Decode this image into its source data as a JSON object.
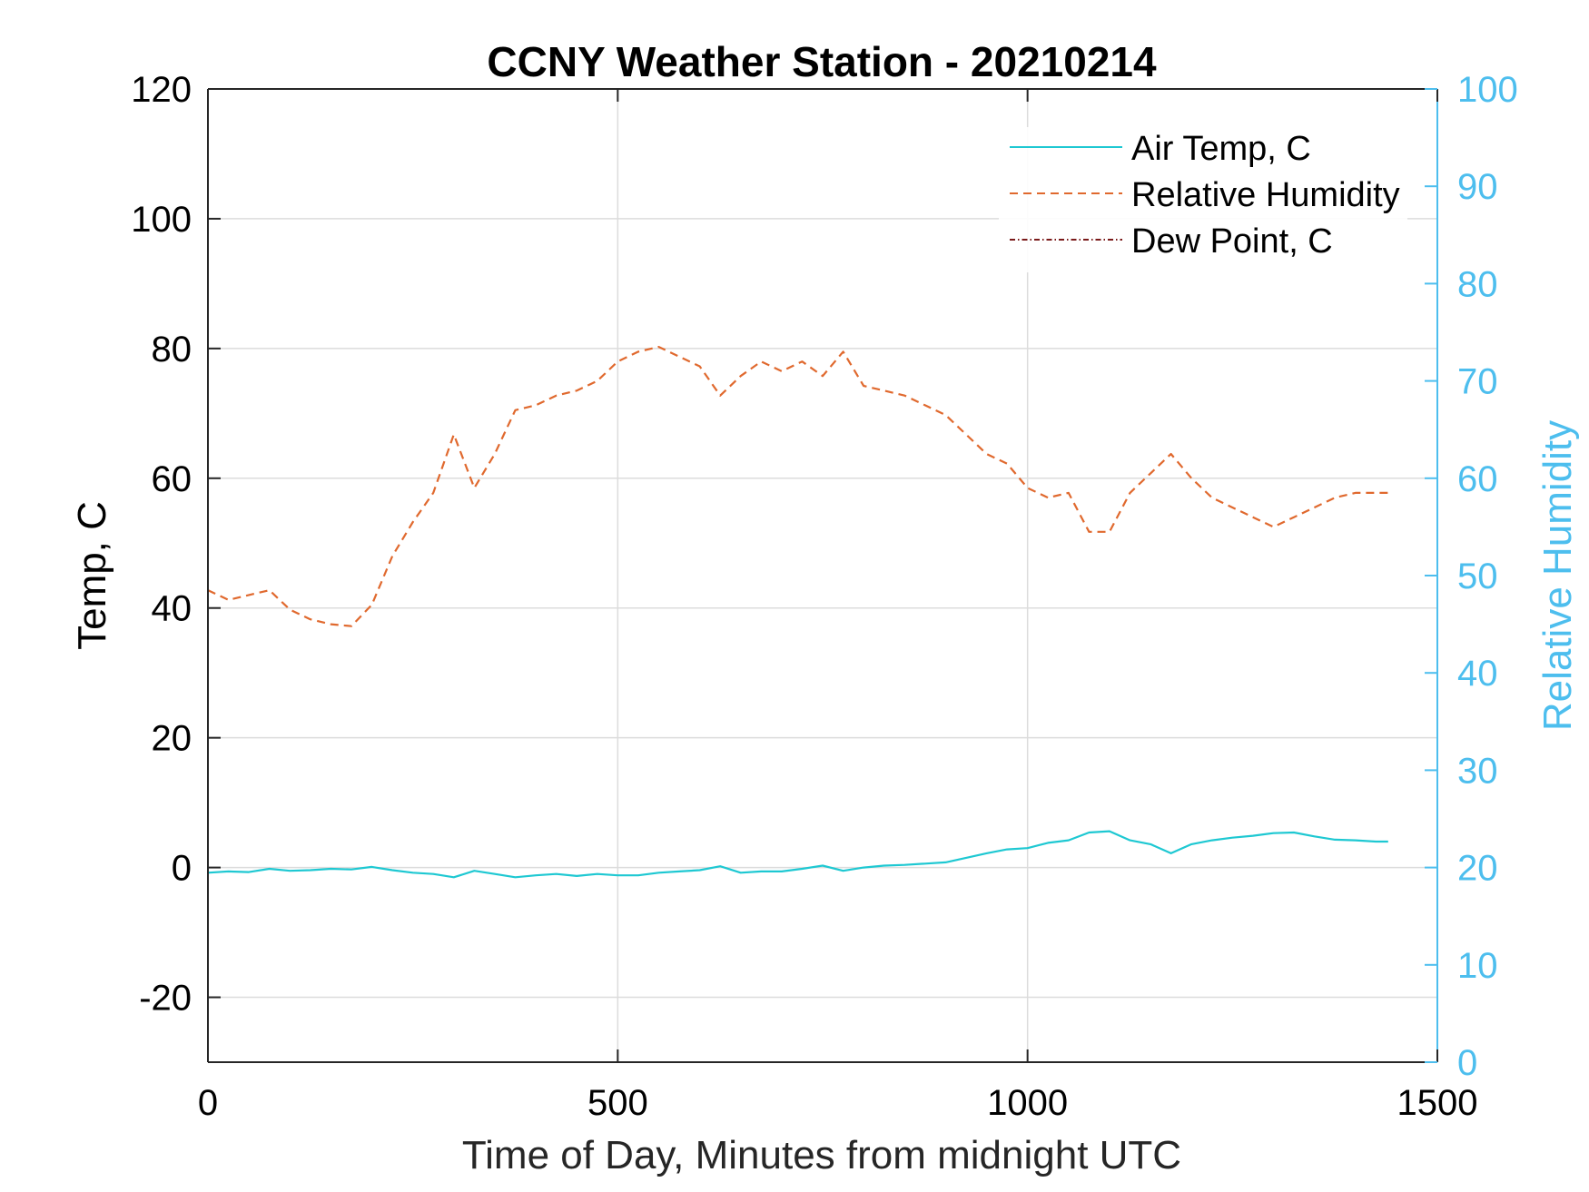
{
  "chart_data": {
    "type": "line",
    "title": "CCNY Weather Station - 20210214",
    "xlabel": "Time of Day, Minutes from midnight UTC",
    "ylabel_left": "Temp, C",
    "ylabel_right": "Relative Humidity",
    "xlim": [
      0,
      1500
    ],
    "ylim_left": [
      -30,
      120
    ],
    "ylim_right": [
      0,
      100
    ],
    "x_ticks": [
      "0",
      "500",
      "1000",
      "1500"
    ],
    "y_ticks_left": [
      "-20",
      "0",
      "20",
      "40",
      "60",
      "80",
      "100",
      "120"
    ],
    "y_ticks_right": [
      "0",
      "10",
      "20",
      "30",
      "40",
      "50",
      "60",
      "70",
      "80",
      "90",
      "100"
    ],
    "grid": true,
    "legend_position": "top-right",
    "colors": {
      "air_temp": "#1ec8d2",
      "relative_humidity": "#e0692e",
      "dew_point": "#7a1a1a",
      "right_axis": "#4dbeee"
    },
    "series": [
      {
        "name": "Air Temp, C",
        "axis": "left",
        "style": "solid",
        "x": [
          0,
          25,
          50,
          75,
          100,
          125,
          150,
          175,
          200,
          225,
          250,
          275,
          300,
          325,
          350,
          375,
          400,
          425,
          450,
          475,
          500,
          525,
          550,
          575,
          600,
          625,
          650,
          675,
          700,
          725,
          750,
          775,
          800,
          825,
          850,
          875,
          900,
          925,
          950,
          975,
          1000,
          1025,
          1050,
          1075,
          1100,
          1125,
          1150,
          1175,
          1200,
          1225,
          1250,
          1275,
          1300,
          1325,
          1350,
          1375,
          1400,
          1425,
          1440
        ],
        "values": [
          -0.8,
          -0.6,
          -0.7,
          -0.2,
          -0.5,
          -0.4,
          -0.2,
          -0.3,
          0.1,
          -0.4,
          -0.8,
          -1.0,
          -1.5,
          -0.5,
          -1.0,
          -1.5,
          -1.2,
          -1.0,
          -1.3,
          -1.0,
          -1.2,
          -1.2,
          -0.8,
          -0.6,
          -0.4,
          0.2,
          -0.8,
          -0.6,
          -0.6,
          -0.2,
          0.3,
          -0.5,
          0.0,
          0.3,
          0.4,
          0.6,
          0.8,
          1.5,
          2.2,
          2.8,
          3.0,
          3.8,
          4.2,
          5.4,
          5.6,
          4.2,
          3.6,
          2.2,
          3.6,
          4.2,
          4.6,
          4.9,
          5.3,
          5.4,
          4.8,
          4.3,
          4.2,
          4.0,
          4.0
        ]
      },
      {
        "name": "Relative Humidity",
        "axis": "right",
        "style": "dashed",
        "x": [
          0,
          25,
          50,
          75,
          100,
          125,
          150,
          175,
          200,
          225,
          250,
          275,
          300,
          325,
          350,
          375,
          400,
          425,
          450,
          475,
          500,
          525,
          550,
          575,
          600,
          625,
          650,
          675,
          700,
          725,
          750,
          775,
          800,
          825,
          850,
          875,
          900,
          925,
          950,
          975,
          1000,
          1025,
          1050,
          1075,
          1100,
          1125,
          1150,
          1175,
          1200,
          1225,
          1250,
          1275,
          1300,
          1325,
          1350,
          1375,
          1400,
          1425,
          1440
        ],
        "values": [
          48.5,
          47.5,
          48,
          48.5,
          46.5,
          45.5,
          45.0,
          44.8,
          47.0,
          52.0,
          55.5,
          58.5,
          64.5,
          59.0,
          62.5,
          67.0,
          67.5,
          68.5,
          69.0,
          70.0,
          72.0,
          73.0,
          73.5,
          72.5,
          71.5,
          68.5,
          70.5,
          72.0,
          71.0,
          72.0,
          70.5,
          73.0,
          69.5,
          69.0,
          68.5,
          67.5,
          66.5,
          64.5,
          62.5,
          61.5,
          59.0,
          58.0,
          58.5,
          54.5,
          54.5,
          58.5,
          60.5,
          62.5,
          60.0,
          58.0,
          57.0,
          56.0,
          55.0,
          56.0,
          57.0,
          58.0,
          58.5,
          58.5,
          58.5
        ]
      },
      {
        "name": "Dew Point, C",
        "axis": "left",
        "style": "dashdot",
        "x": [],
        "values": []
      }
    ]
  }
}
